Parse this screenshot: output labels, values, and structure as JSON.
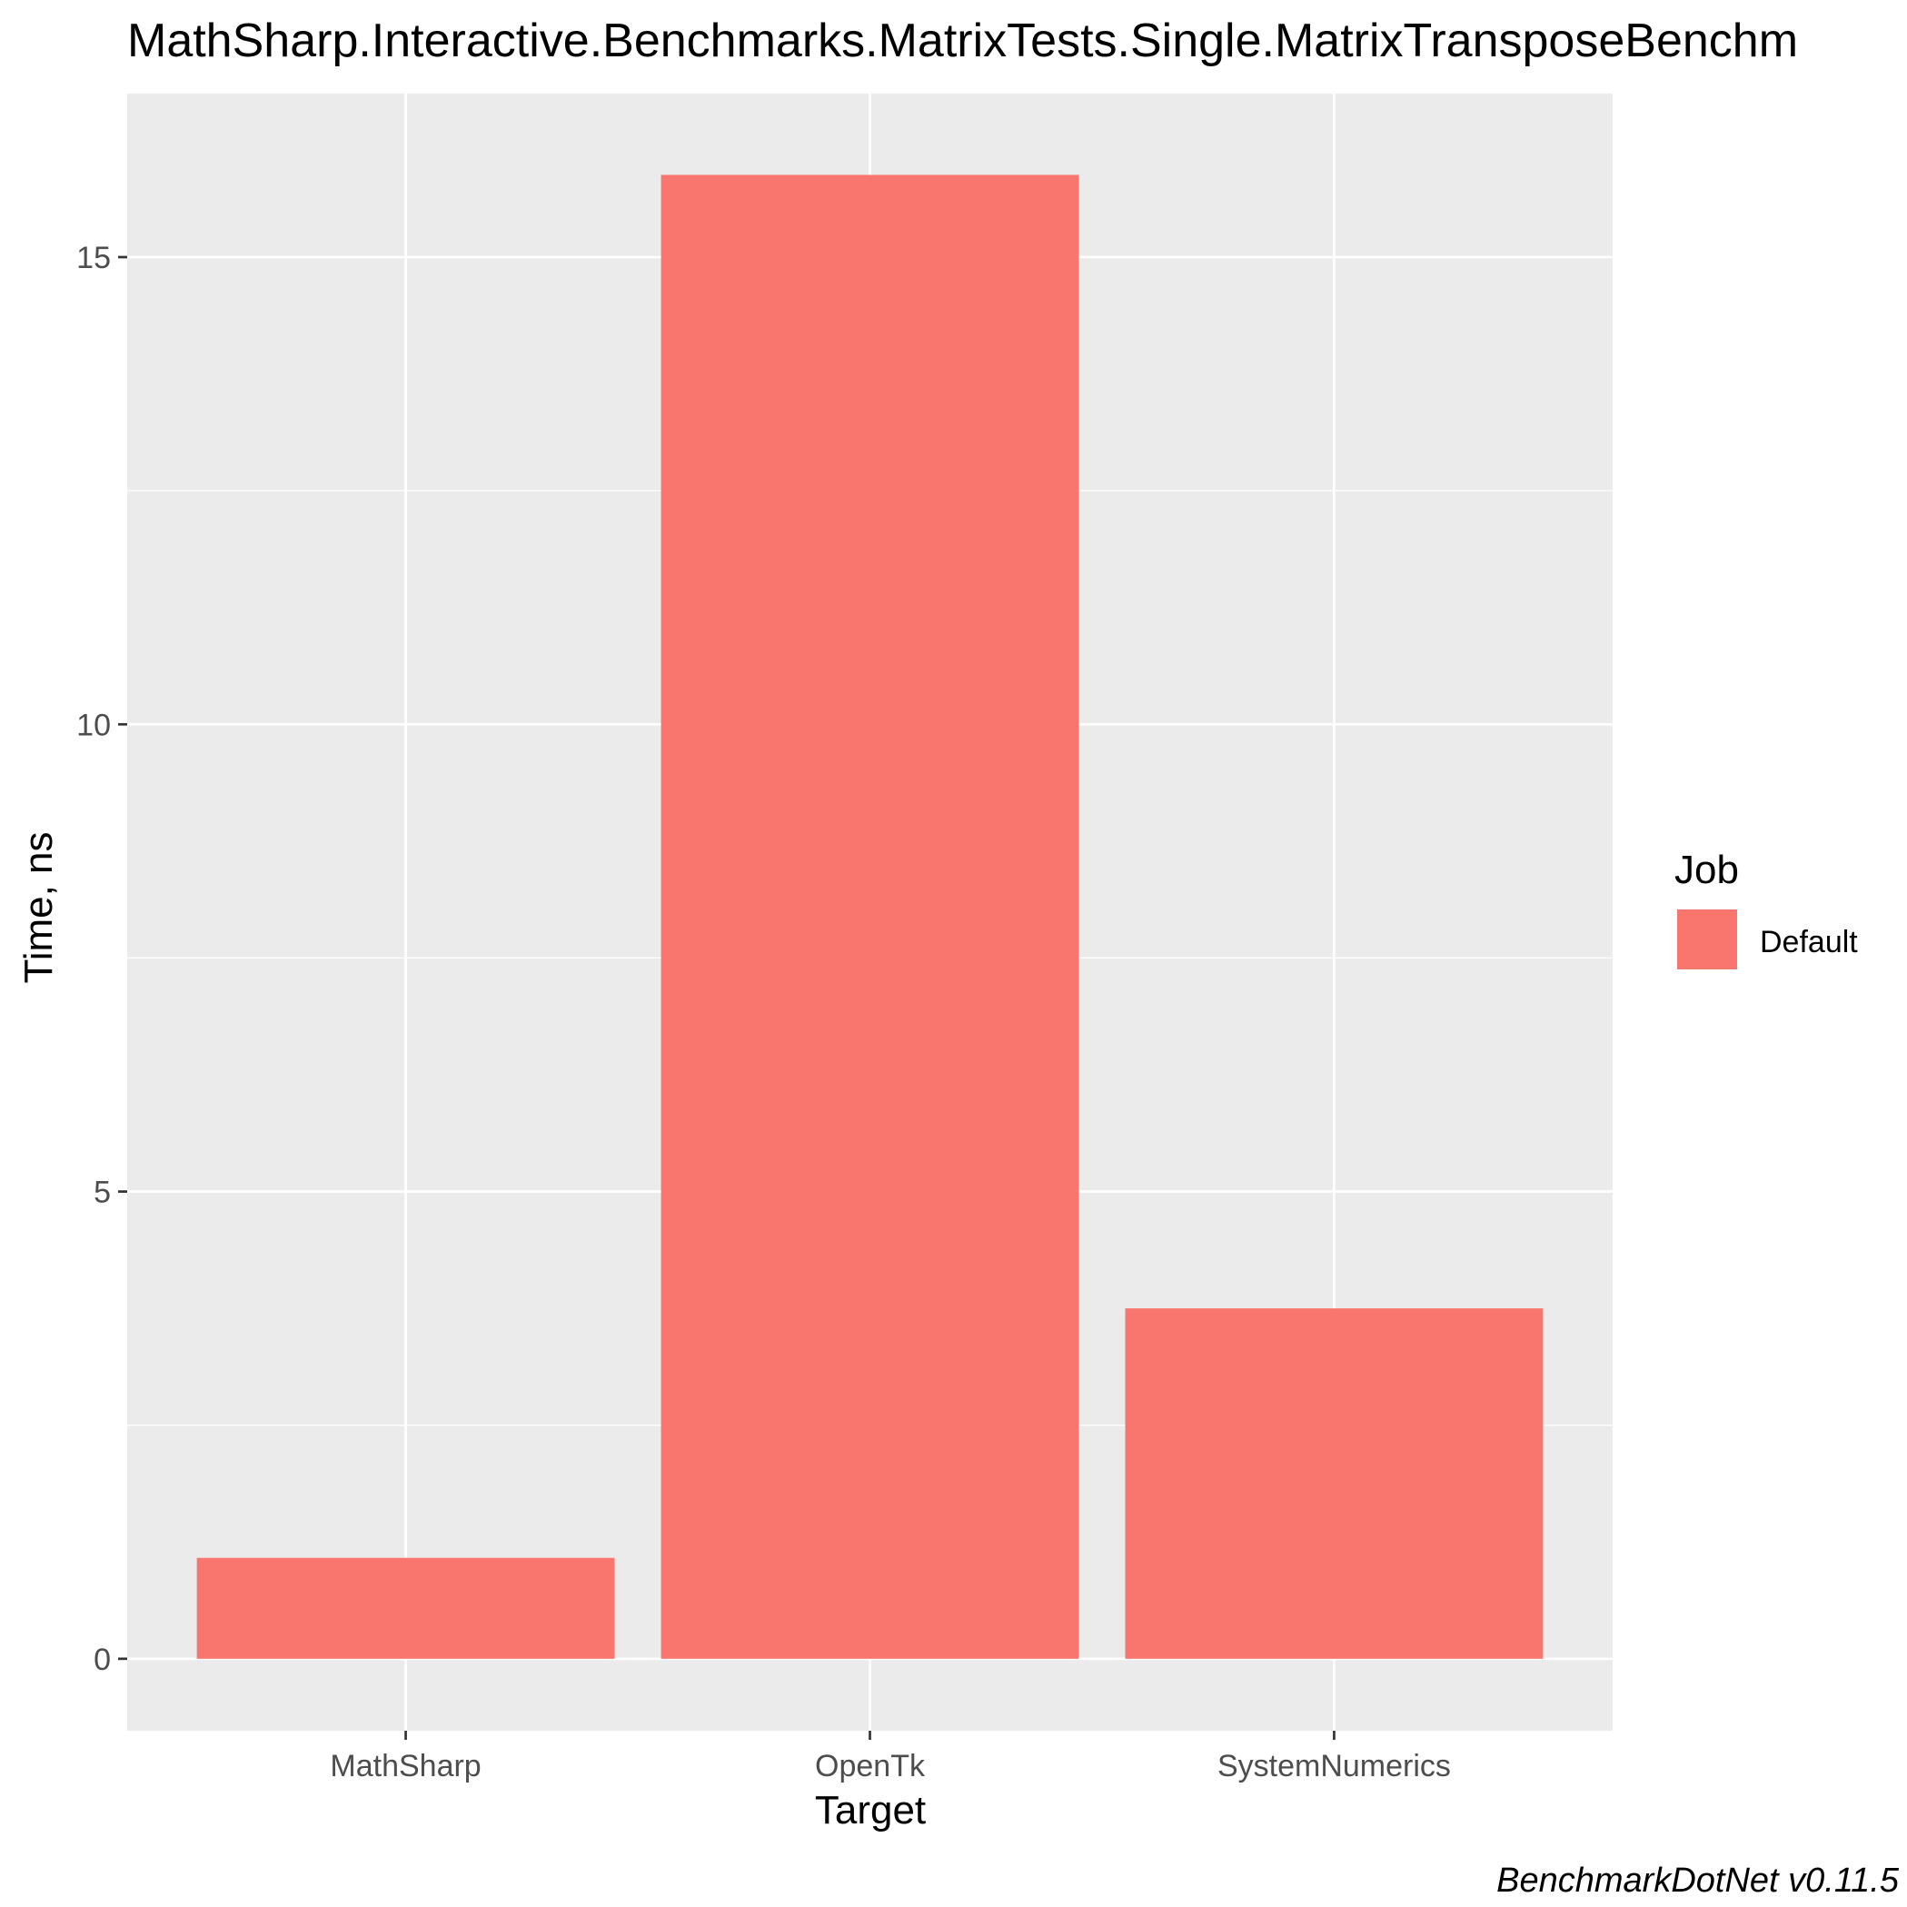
{
  "chart_data": {
    "type": "bar",
    "title": "MathSharp.Interactive.Benchmarks.MatrixTests.Single.MatrixTransposeBenchm",
    "xlabel": "Target",
    "ylabel": "Time, ns",
    "categories": [
      "MathSharp",
      "OpenTk",
      "SystemNumerics"
    ],
    "series": [
      {
        "name": "Default",
        "values": [
          1.08,
          15.88,
          3.75
        ]
      }
    ],
    "ylim": [
      -0.77,
      16.75
    ],
    "yticks": [
      0,
      5,
      10,
      15
    ],
    "ytick_labels": [
      "0",
      "5",
      "10",
      "15"
    ],
    "grid": true,
    "legend": {
      "title": "Job",
      "position": "right",
      "entries": [
        "Default"
      ]
    },
    "caption": "BenchmarkDotNet v0.11.5",
    "colors": {
      "bar": "#F8766D",
      "panel": "#EBEBEB",
      "grid": "#FFFFFF",
      "tick": "#333333"
    }
  }
}
